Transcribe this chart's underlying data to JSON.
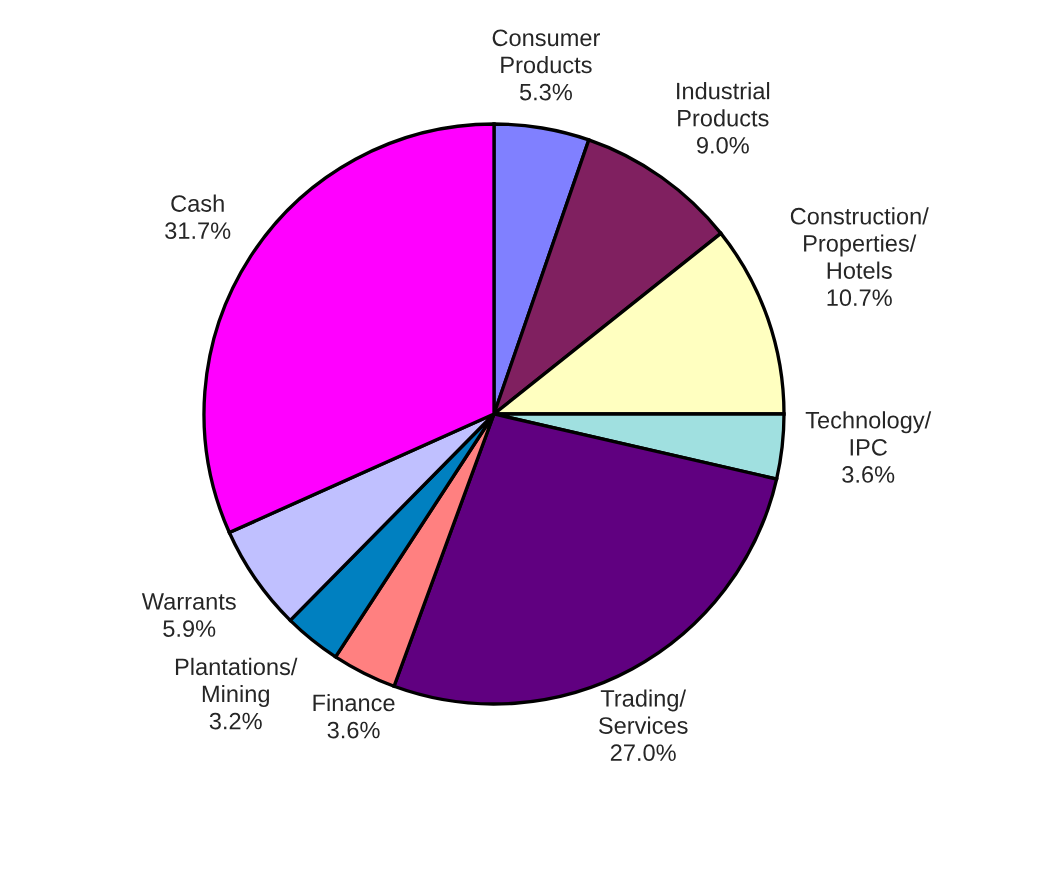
{
  "chart_data": {
    "type": "pie",
    "categories": [
      "Consumer Products",
      "Industrial Products",
      "Construction/ Properties/ Hotels",
      "Technology/ IPC",
      "Trading/ Services",
      "Finance",
      "Plantations/ Mining",
      "Warrants",
      "Cash"
    ],
    "values": [
      5.3,
      9.0,
      10.7,
      3.6,
      27.0,
      3.6,
      3.2,
      5.9,
      31.7
    ],
    "value_labels": [
      "5.3%",
      "9.0%",
      "10.7%",
      "3.6%",
      "27.0%",
      "3.6%",
      "3.2%",
      "5.9%",
      "31.7%"
    ],
    "colors": [
      "#8080ff",
      "#802060",
      "#ffffc0",
      "#a0e0e0",
      "#600080",
      "#ff8080",
      "#0080c0",
      "#c0c0ff",
      "#ff00ff"
    ]
  }
}
